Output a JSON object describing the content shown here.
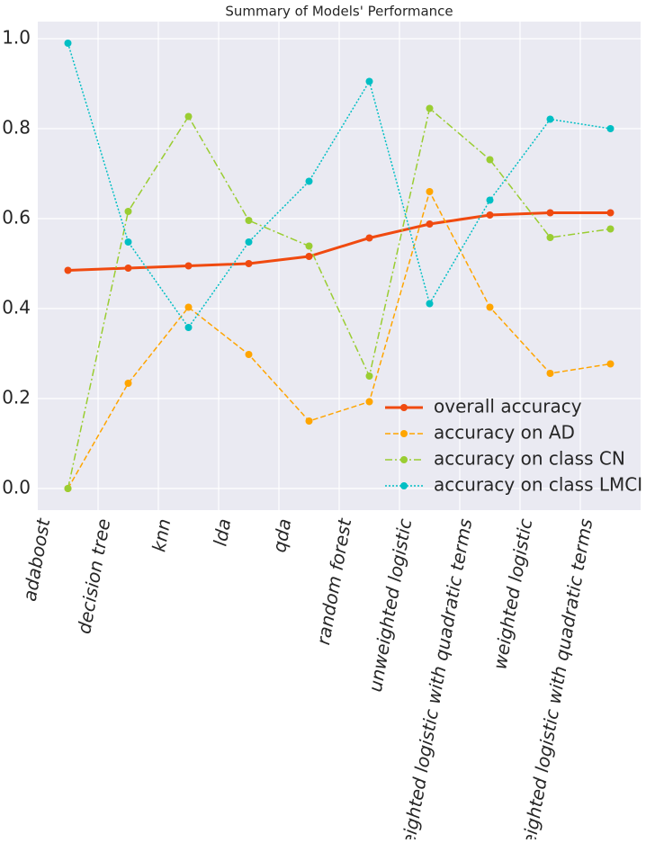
{
  "chart_data": {
    "type": "line",
    "title": "Summary of Models' Performance",
    "categories": [
      "adaboost",
      "decision tree",
      "knn",
      "lda",
      "qda",
      "random forest",
      "unweighted logistic",
      "unweighted logistic with quadratic terms",
      "weighted logistic",
      "weighted logistic with quadratic terms"
    ],
    "series": [
      {
        "name": "overall accuracy",
        "color": "#f04a10",
        "linestyle": "solid",
        "values": [
          0.485,
          0.49,
          0.495,
          0.5,
          0.516,
          0.557,
          0.588,
          0.608,
          0.613,
          0.613
        ]
      },
      {
        "name": "accuracy on AD",
        "color": "#ffa500",
        "linestyle": "dashed",
        "values": [
          0.0,
          0.234,
          0.403,
          0.298,
          0.15,
          0.193,
          0.66,
          0.403,
          0.256,
          0.277
        ]
      },
      {
        "name": "accuracy on class CN",
        "color": "#9acd32",
        "linestyle": "dashdot",
        "values": [
          0.0,
          0.616,
          0.827,
          0.596,
          0.539,
          0.25,
          0.845,
          0.731,
          0.558,
          0.577
        ]
      },
      {
        "name": "accuracy on class LMCI",
        "color": "#00bfc4",
        "linestyle": "dotted",
        "values": [
          0.99,
          0.548,
          0.358,
          0.548,
          0.683,
          0.905,
          0.411,
          0.641,
          0.821,
          0.8
        ]
      }
    ],
    "ylim": [
      -0.048,
      1.038
    ],
    "yticks": [
      {
        "value": 0,
        "label": "0.0"
      },
      {
        "value": 0.2,
        "label": "0.2"
      },
      {
        "value": 0.4,
        "label": "0.4"
      },
      {
        "value": 0.6,
        "label": "0.6"
      },
      {
        "value": 0.8,
        "label": "0.8"
      },
      {
        "value": 1,
        "label": "1.0"
      }
    ],
    "grid": true,
    "legend": "lower right"
  }
}
